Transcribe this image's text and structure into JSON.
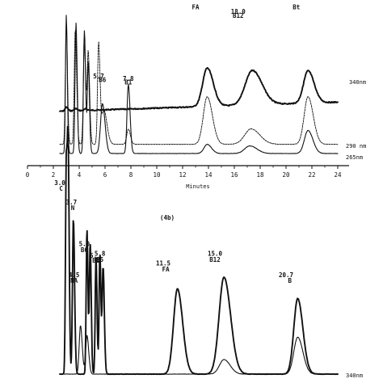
{
  "chart_data": [
    {
      "type": "line",
      "panel_label": "",
      "xlabel": "Minutes",
      "xlim": [
        0,
        24
      ],
      "x_ticks": [
        "0",
        "2",
        "4",
        "6",
        "8",
        "10",
        "12",
        "14",
        "16",
        "18",
        "20",
        "22",
        "24"
      ],
      "series": [
        {
          "name": "340nm",
          "label": "340nm",
          "offset": 0.55,
          "baseline_start": 0.0,
          "baseline_end": 0.12,
          "peaks": [
            {
              "rt": 3.0,
              "h": 0.05,
              "w": 0.1
            },
            {
              "rt": 3.7,
              "h": 0.03,
              "w": 0.1
            },
            {
              "rt": 4.5,
              "h": 0.02,
              "w": 0.1
            },
            {
              "rt": 13.9,
              "h": 0.5,
              "w": 0.35
            },
            {
              "rt": 17.4,
              "h": 0.45,
              "w": 0.55
            },
            {
              "rt": 21.7,
              "h": 0.42,
              "w": 0.35
            }
          ]
        },
        {
          "name": "290 nm",
          "label": "290 nm",
          "offset": 0.12,
          "baseline_start": 0.0,
          "baseline_end": 0.0,
          "peaks": [
            {
              "rt": 3.0,
              "h": 1.6,
              "w": 0.07
            },
            {
              "rt": 3.7,
              "h": 1.5,
              "w": 0.08
            },
            {
              "rt": 4.4,
              "h": 1.3,
              "w": 0.08
            },
            {
              "rt": 4.7,
              "h": 1.2,
              "w": 0.08
            },
            {
              "rt": 5.5,
              "h": 1.3,
              "w": 0.08
            },
            {
              "rt": 5.9,
              "h": 0.45,
              "w": 0.18
            },
            {
              "rt": 7.8,
              "h": 0.2,
              "w": 0.12
            },
            {
              "rt": 13.9,
              "h": 0.62,
              "w": 0.3
            },
            {
              "rt": 17.3,
              "h": 0.2,
              "w": 0.5
            },
            {
              "rt": 21.7,
              "h": 0.62,
              "w": 0.3
            }
          ]
        },
        {
          "name": "265nm",
          "label": "265nm",
          "offset": 0.0,
          "baseline_start": 0.0,
          "baseline_end": 0.0,
          "peaks": [
            {
              "rt": 3.0,
              "h": 1.8,
              "w": 0.06
            },
            {
              "rt": 3.75,
              "h": 1.7,
              "w": 0.07
            },
            {
              "rt": 4.4,
              "h": 1.6,
              "w": 0.07
            },
            {
              "rt": 4.7,
              "h": 1.2,
              "w": 0.07
            },
            {
              "rt": 5.8,
              "h": 0.65,
              "w": 0.15
            },
            {
              "rt": 7.8,
              "h": 0.9,
              "w": 0.1
            },
            {
              "rt": 13.9,
              "h": 0.12,
              "w": 0.25
            },
            {
              "rt": 17.2,
              "h": 0.1,
              "w": 0.4
            },
            {
              "rt": 21.7,
              "h": 0.3,
              "w": 0.28
            }
          ]
        }
      ],
      "annotations": [
        {
          "text": "5.7",
          "x": 5.5,
          "y": 0.98
        },
        {
          "text": "B6",
          "x": 5.8,
          "y": 0.93
        },
        {
          "text": "7.8",
          "x": 7.8,
          "y": 0.95
        },
        {
          "text": "B1",
          "x": 7.8,
          "y": 0.9
        },
        {
          "text": "FA",
          "x": 13.0,
          "y": 1.88
        },
        {
          "text": "18.0",
          "x": 16.3,
          "y": 1.82
        },
        {
          "text": "B12",
          "x": 16.3,
          "y": 1.77
        },
        {
          "text": "Bt",
          "x": 20.8,
          "y": 1.88
        }
      ]
    },
    {
      "type": "line",
      "panel_label": "(4b)",
      "xlabel": "",
      "xlim": [
        0,
        24
      ],
      "series": [
        {
          "name": "340nm",
          "label": "340nm",
          "offset": 0.0,
          "baseline_start": 0.0,
          "baseline_end": 0.0,
          "peaks": [
            {
              "rt": 3.0,
              "h": 2.2,
              "w": 0.06
            },
            {
              "rt": 3.15,
              "h": 2.1,
              "w": 0.06
            },
            {
              "rt": 3.55,
              "h": 1.6,
              "w": 0.07
            },
            {
              "rt": 4.6,
              "h": 1.5,
              "w": 0.06
            },
            {
              "rt": 4.85,
              "h": 1.35,
              "w": 0.06
            },
            {
              "rt": 5.3,
              "h": 1.2,
              "w": 0.06
            },
            {
              "rt": 5.6,
              "h": 1.25,
              "w": 0.06
            },
            {
              "rt": 5.85,
              "h": 1.1,
              "w": 0.07
            },
            {
              "rt": 11.6,
              "h": 0.88,
              "w": 0.3
            },
            {
              "rt": 15.2,
              "h": 1.0,
              "w": 0.38
            },
            {
              "rt": 20.9,
              "h": 0.78,
              "w": 0.3
            }
          ]
        },
        {
          "name": "",
          "label": "",
          "offset": 0.0,
          "baseline_start": 0.0,
          "baseline_end": 0.0,
          "peaks": [
            {
              "rt": 4.1,
              "h": 0.5,
              "w": 0.1
            },
            {
              "rt": 4.6,
              "h": 0.4,
              "w": 0.1
            },
            {
              "rt": 15.2,
              "h": 0.15,
              "w": 0.35
            },
            {
              "rt": 20.9,
              "h": 0.38,
              "w": 0.3
            }
          ]
        }
      ],
      "annotations": [
        {
          "text": "3.0",
          "x": 2.5,
          "y": 1.95
        },
        {
          "text": "C",
          "x": 2.6,
          "y": 1.89
        },
        {
          "text": "3.7",
          "x": 3.4,
          "y": 1.75
        },
        {
          "text": "N",
          "x": 3.5,
          "y": 1.69
        },
        {
          "text": "4.5",
          "x": 3.6,
          "y": 1.0
        },
        {
          "text": "NA",
          "x": 3.6,
          "y": 0.94
        },
        {
          "text": "5.0",
          "x": 4.4,
          "y": 1.32
        },
        {
          "text": "B6",
          "x": 4.4,
          "y": 1.26
        },
        {
          "text": "5.",
          "x": 5.1,
          "y": 1.2
        },
        {
          "text": "B1",
          "x": 5.3,
          "y": 1.15
        },
        {
          "text": "5.8",
          "x": 5.6,
          "y": 1.22
        },
        {
          "text": "B5",
          "x": 5.6,
          "y": 1.16
        },
        {
          "text": "11.5",
          "x": 10.5,
          "y": 1.12
        },
        {
          "text": "FA",
          "x": 10.7,
          "y": 1.06
        },
        {
          "text": "15.0",
          "x": 14.5,
          "y": 1.22
        },
        {
          "text": "B12",
          "x": 14.5,
          "y": 1.16
        },
        {
          "text": "20.7",
          "x": 20.0,
          "y": 1.0
        },
        {
          "text": "B",
          "x": 20.3,
          "y": 0.94
        }
      ]
    }
  ]
}
